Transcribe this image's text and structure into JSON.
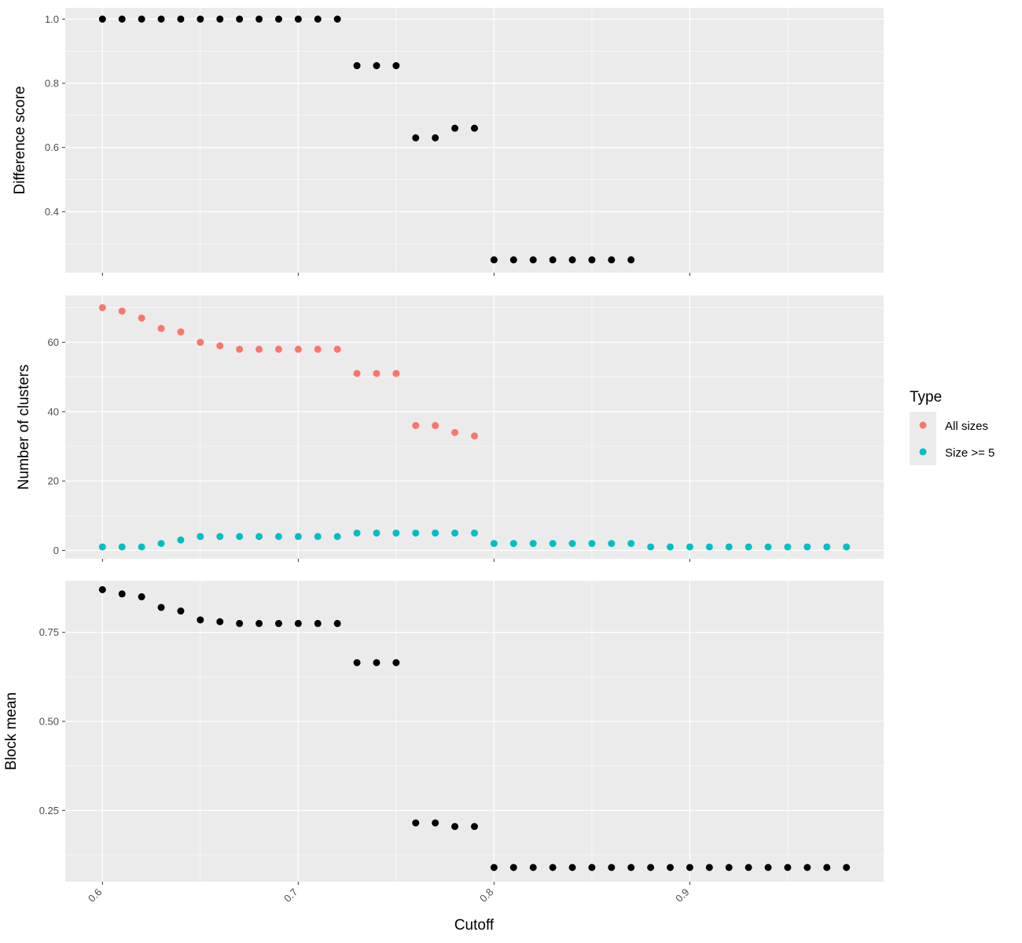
{
  "chart_data": [
    {
      "type": "scatter",
      "ylabel": "Difference score",
      "xlim": [
        0.581,
        0.999
      ],
      "ylim": [
        0.21,
        1.035
      ],
      "y_major_ticks": [
        0.4,
        0.6,
        0.8,
        1.0
      ],
      "y_tick_labels": [
        "0.4",
        "0.6",
        "0.8",
        "1.0"
      ],
      "y_minor_ticks": [
        0.3,
        0.5,
        0.7,
        0.9
      ],
      "color": "#000000",
      "x": [
        0.6,
        0.61,
        0.62,
        0.63,
        0.64,
        0.65,
        0.66,
        0.67,
        0.68,
        0.69,
        0.7,
        0.71,
        0.72,
        0.73,
        0.74,
        0.75,
        0.76,
        0.77,
        0.78,
        0.79,
        0.8,
        0.81,
        0.82,
        0.83,
        0.84,
        0.85,
        0.86,
        0.87
      ],
      "y": [
        1.0,
        1.0,
        1.0,
        1.0,
        1.0,
        1.0,
        1.0,
        1.0,
        1.0,
        1.0,
        1.0,
        1.0,
        1.0,
        0.855,
        0.855,
        0.855,
        0.63,
        0.63,
        0.66,
        0.66,
        0.25,
        0.25,
        0.25,
        0.25,
        0.25,
        0.25,
        0.25,
        0.25
      ]
    },
    {
      "type": "scatter",
      "ylabel": "Number of clusters",
      "xlim": [
        0.581,
        0.999
      ],
      "ylim": [
        -2.4,
        73.5
      ],
      "y_major_ticks": [
        0,
        20,
        40,
        60
      ],
      "y_tick_labels": [
        "0",
        "20",
        "40",
        "60"
      ],
      "y_minor_ticks": [
        10,
        30,
        50,
        70
      ],
      "legend": {
        "title": "Type",
        "position": "right"
      },
      "series": [
        {
          "name": "All sizes",
          "color": "#F8766D",
          "x": [
            0.6,
            0.61,
            0.62,
            0.63,
            0.64,
            0.65,
            0.66,
            0.67,
            0.68,
            0.69,
            0.7,
            0.71,
            0.72,
            0.73,
            0.74,
            0.75,
            0.76,
            0.77,
            0.78,
            0.79
          ],
          "y": [
            70,
            69,
            67,
            64,
            63,
            60,
            59,
            58,
            58,
            58,
            58,
            58,
            58,
            51,
            51,
            51,
            36,
            36,
            34,
            33
          ]
        },
        {
          "name": "Size >= 5",
          "color": "#00BFC4",
          "x": [
            0.6,
            0.61,
            0.62,
            0.63,
            0.64,
            0.65,
            0.66,
            0.67,
            0.68,
            0.69,
            0.7,
            0.71,
            0.72,
            0.73,
            0.74,
            0.75,
            0.76,
            0.77,
            0.78,
            0.79,
            0.8,
            0.81,
            0.82,
            0.83,
            0.84,
            0.85,
            0.86,
            0.87,
            0.88,
            0.89,
            0.9,
            0.91,
            0.92,
            0.93,
            0.94,
            0.95,
            0.96,
            0.97,
            0.98
          ],
          "y": [
            1,
            1,
            1,
            2,
            3,
            4,
            4,
            4,
            4,
            4,
            4,
            4,
            4,
            5,
            5,
            5,
            5,
            5,
            5,
            5,
            2,
            2,
            2,
            2,
            2,
            2,
            2,
            2,
            1,
            1,
            1,
            1,
            1,
            1,
            1,
            1,
            1,
            1,
            1
          ]
        }
      ]
    },
    {
      "type": "scatter",
      "ylabel": "Block mean",
      "xlabel": "Cutoff",
      "xlim": [
        0.581,
        0.999
      ],
      "ylim": [
        0.05,
        0.895
      ],
      "x_major_ticks": [
        0.6,
        0.7,
        0.8,
        0.9
      ],
      "x_tick_labels": [
        "0.6",
        "0.7",
        "0.8",
        "0.9"
      ],
      "x_minor_ticks": [
        0.65,
        0.75,
        0.85,
        0.95
      ],
      "y_major_ticks": [
        0.25,
        0.5,
        0.75
      ],
      "y_tick_labels": [
        "0.25",
        "0.50",
        "0.75"
      ],
      "y_minor_ticks": [
        0.125,
        0.375,
        0.625
      ],
      "color": "#000000",
      "x": [
        0.6,
        0.61,
        0.62,
        0.63,
        0.64,
        0.65,
        0.66,
        0.67,
        0.68,
        0.69,
        0.7,
        0.71,
        0.72,
        0.73,
        0.74,
        0.75,
        0.76,
        0.77,
        0.78,
        0.79,
        0.8,
        0.81,
        0.82,
        0.83,
        0.84,
        0.85,
        0.86,
        0.87,
        0.88,
        0.89,
        0.9,
        0.91,
        0.92,
        0.93,
        0.94,
        0.95,
        0.96,
        0.97,
        0.98
      ],
      "y": [
        0.87,
        0.858,
        0.85,
        0.82,
        0.81,
        0.785,
        0.78,
        0.775,
        0.775,
        0.775,
        0.775,
        0.775,
        0.775,
        0.665,
        0.665,
        0.665,
        0.215,
        0.215,
        0.205,
        0.205,
        0.09,
        0.09,
        0.09,
        0.09,
        0.09,
        0.09,
        0.09,
        0.09,
        0.09,
        0.09,
        0.09,
        0.09,
        0.09,
        0.09,
        0.09,
        0.09,
        0.09,
        0.09,
        0.09
      ]
    }
  ]
}
